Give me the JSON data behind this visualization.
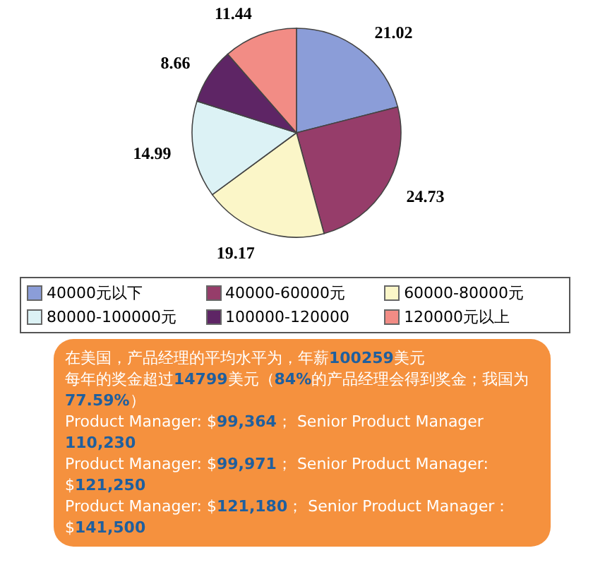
{
  "chart_data": {
    "type": "pie",
    "categories": [
      "40000元以下",
      "40000-60000元",
      "60000-80000元",
      "80000-100000元",
      "100000-120000",
      "120000元以上"
    ],
    "values": [
      21.02,
      24.73,
      19.17,
      14.99,
      8.66,
      11.44
    ],
    "colors": [
      "#8b9dd8",
      "#963d6a",
      "#fbf6c8",
      "#dcf2f5",
      "#5e2565",
      "#f28c85"
    ],
    "data_labels": true,
    "legend": "bottom",
    "annotations": [
      "在美国，产品经理的平均水平为，年薪100259美元",
      "每年的奖金超过14799美元（84%的产品经理会得到奖金；我国为77.59%）",
      "Product Manager: $99,364； Senior Product Manager 110,230",
      "Product Manager: $99,971； Senior Product Manager: $121,250",
      "Product Manager: $121,180； Senior Product Manager：$141,500"
    ]
  }
}
